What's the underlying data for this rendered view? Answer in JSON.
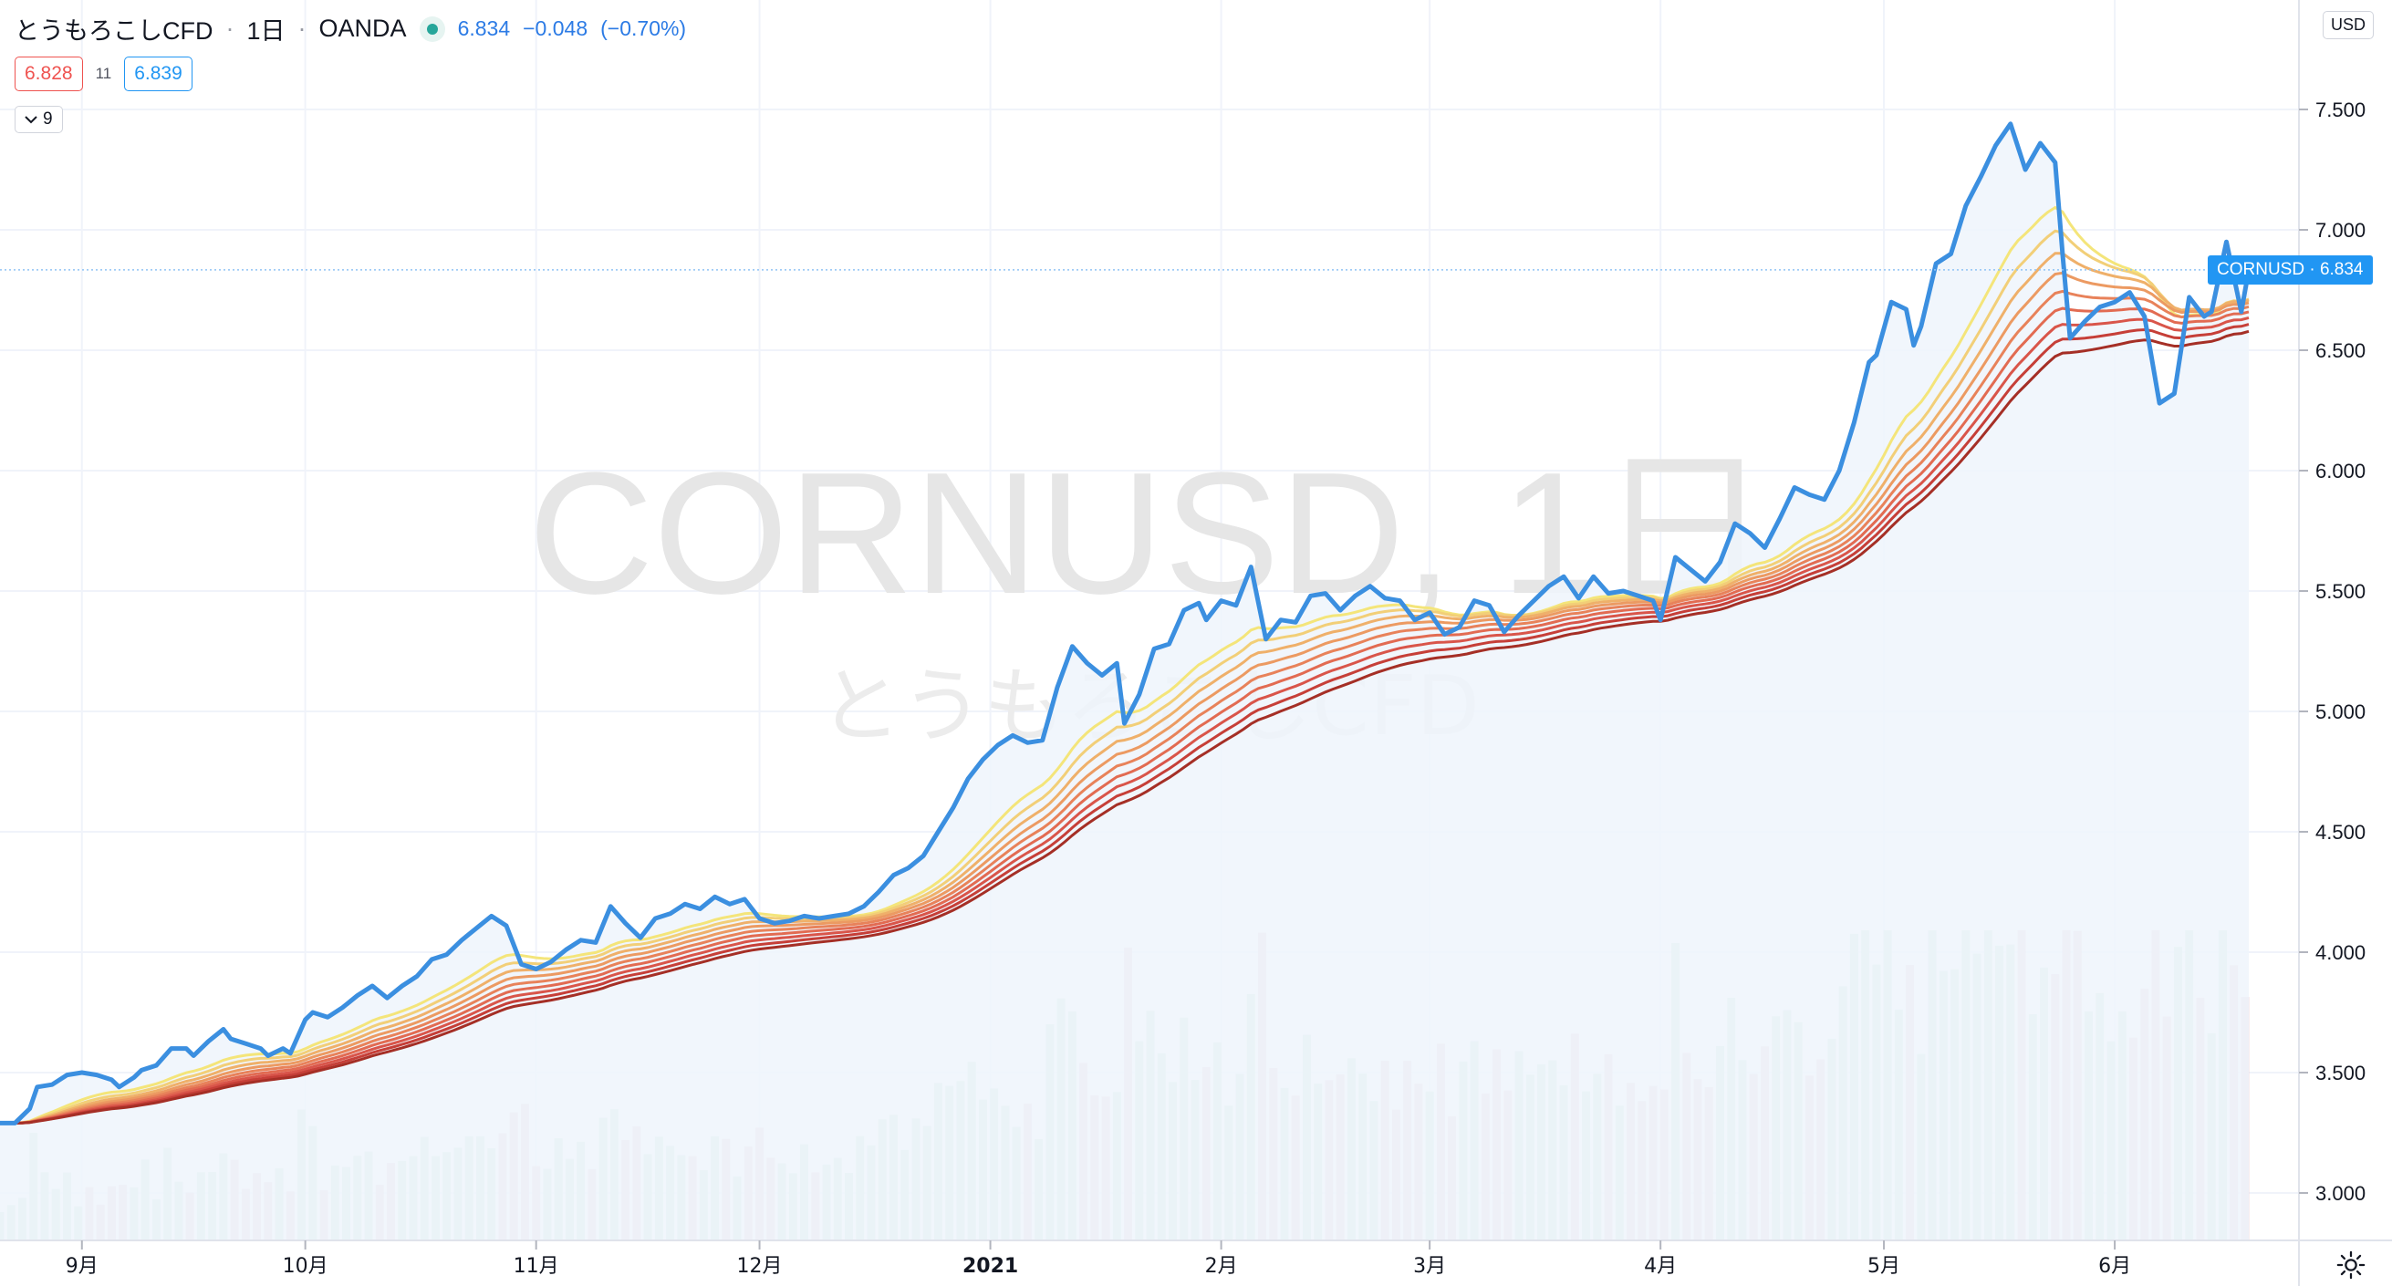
{
  "header": {
    "symbol": "とうもろこしCFD",
    "sep": "·",
    "interval": "1日",
    "exchange": "OANDA",
    "last": "6.834",
    "change": "−0.048",
    "change_pct": "(−0.70%)",
    "bid": "6.828",
    "spread": "11",
    "ask": "6.839",
    "indicators_count": "9",
    "currency": "USD"
  },
  "watermark": {
    "line1": "CORNUSD, 1日",
    "line2": "とうもろこしCFD"
  },
  "last_label": "CORNUSD · 6.834",
  "colors": {
    "price": "#3b8fe0",
    "ribbon": [
      "#f4e57a",
      "#f2cf78",
      "#efb06a",
      "#ec9a62",
      "#e8825a",
      "#e26b52",
      "#d9554a",
      "#c63f38",
      "#a52f26"
    ],
    "volume_up": "#cfe8d9",
    "volume_down": "#ecd7dc",
    "area_fill": "#eef5fc",
    "last_tag": "#2196f3"
  },
  "icons": {
    "settings": "gear-icon",
    "toggle": "chevron-down-icon"
  },
  "chart_data": {
    "type": "line",
    "title": "",
    "x_ticks": [
      "9月",
      "10月",
      "11月",
      "12月",
      "2021",
      "2月",
      "3月",
      "4月",
      "5月",
      "6月"
    ],
    "x_tick_days": [
      11,
      41,
      72,
      102,
      133,
      164,
      192,
      223,
      253,
      284
    ],
    "y_ticks": [
      "7.500",
      "7.000",
      "6.500",
      "6.000",
      "5.500",
      "5.000",
      "4.500",
      "4.000",
      "3.500",
      "3.000"
    ],
    "ylim": [
      2.9,
      7.75
    ],
    "x_range_days": [
      0,
      302
    ],
    "last_value": 6.834,
    "price_points": [
      [
        0,
        3.29
      ],
      [
        2,
        3.29
      ],
      [
        4,
        3.35
      ],
      [
        5,
        3.44
      ],
      [
        7,
        3.45
      ],
      [
        9,
        3.49
      ],
      [
        11,
        3.5
      ],
      [
        13,
        3.49
      ],
      [
        15,
        3.47
      ],
      [
        16,
        3.44
      ],
      [
        18,
        3.48
      ],
      [
        19,
        3.51
      ],
      [
        21,
        3.53
      ],
      [
        23,
        3.6
      ],
      [
        25,
        3.6
      ],
      [
        26,
        3.57
      ],
      [
        28,
        3.63
      ],
      [
        30,
        3.68
      ],
      [
        31,
        3.64
      ],
      [
        33,
        3.62
      ],
      [
        35,
        3.6
      ],
      [
        36,
        3.57
      ],
      [
        38,
        3.6
      ],
      [
        39,
        3.58
      ],
      [
        41,
        3.72
      ],
      [
        42,
        3.75
      ],
      [
        44,
        3.73
      ],
      [
        46,
        3.77
      ],
      [
        48,
        3.82
      ],
      [
        50,
        3.86
      ],
      [
        52,
        3.81
      ],
      [
        54,
        3.86
      ],
      [
        56,
        3.9
      ],
      [
        58,
        3.97
      ],
      [
        60,
        3.99
      ],
      [
        62,
        4.05
      ],
      [
        64,
        4.1
      ],
      [
        66,
        4.15
      ],
      [
        68,
        4.11
      ],
      [
        70,
        3.95
      ],
      [
        72,
        3.93
      ],
      [
        74,
        3.96
      ],
      [
        76,
        4.01
      ],
      [
        78,
        4.05
      ],
      [
        80,
        4.04
      ],
      [
        82,
        4.19
      ],
      [
        84,
        4.12
      ],
      [
        86,
        4.06
      ],
      [
        88,
        4.14
      ],
      [
        90,
        4.16
      ],
      [
        92,
        4.2
      ],
      [
        94,
        4.18
      ],
      [
        96,
        4.23
      ],
      [
        98,
        4.2
      ],
      [
        100,
        4.22
      ],
      [
        102,
        4.14
      ],
      [
        104,
        4.12
      ],
      [
        106,
        4.13
      ],
      [
        108,
        4.15
      ],
      [
        110,
        4.14
      ],
      [
        112,
        4.15
      ],
      [
        114,
        4.16
      ],
      [
        116,
        4.19
      ],
      [
        118,
        4.25
      ],
      [
        120,
        4.32
      ],
      [
        122,
        4.35
      ],
      [
        124,
        4.4
      ],
      [
        126,
        4.5
      ],
      [
        128,
        4.6
      ],
      [
        130,
        4.72
      ],
      [
        132,
        4.8
      ],
      [
        134,
        4.86
      ],
      [
        136,
        4.9
      ],
      [
        138,
        4.87
      ],
      [
        140,
        4.88
      ],
      [
        142,
        5.1
      ],
      [
        144,
        5.27
      ],
      [
        146,
        5.2
      ],
      [
        148,
        5.15
      ],
      [
        150,
        5.2
      ],
      [
        151,
        4.95
      ],
      [
        153,
        5.07
      ],
      [
        155,
        5.26
      ],
      [
        157,
        5.28
      ],
      [
        159,
        5.42
      ],
      [
        161,
        5.45
      ],
      [
        162,
        5.38
      ],
      [
        164,
        5.46
      ],
      [
        166,
        5.44
      ],
      [
        168,
        5.6
      ],
      [
        170,
        5.3
      ],
      [
        172,
        5.38
      ],
      [
        174,
        5.37
      ],
      [
        176,
        5.48
      ],
      [
        178,
        5.49
      ],
      [
        180,
        5.42
      ],
      [
        182,
        5.48
      ],
      [
        184,
        5.52
      ],
      [
        186,
        5.47
      ],
      [
        188,
        5.46
      ],
      [
        190,
        5.38
      ],
      [
        192,
        5.41
      ],
      [
        194,
        5.32
      ],
      [
        196,
        5.35
      ],
      [
        198,
        5.46
      ],
      [
        200,
        5.44
      ],
      [
        202,
        5.33
      ],
      [
        204,
        5.4
      ],
      [
        206,
        5.46
      ],
      [
        208,
        5.52
      ],
      [
        210,
        5.56
      ],
      [
        212,
        5.47
      ],
      [
        214,
        5.56
      ],
      [
        216,
        5.49
      ],
      [
        218,
        5.5
      ],
      [
        220,
        5.48
      ],
      [
        222,
        5.46
      ],
      [
        223,
        5.38
      ],
      [
        225,
        5.64
      ],
      [
        227,
        5.59
      ],
      [
        229,
        5.54
      ],
      [
        231,
        5.62
      ],
      [
        233,
        5.78
      ],
      [
        235,
        5.74
      ],
      [
        237,
        5.68
      ],
      [
        239,
        5.8
      ],
      [
        241,
        5.93
      ],
      [
        243,
        5.9
      ],
      [
        245,
        5.88
      ],
      [
        247,
        6.0
      ],
      [
        249,
        6.2
      ],
      [
        251,
        6.45
      ],
      [
        252,
        6.48
      ],
      [
        254,
        6.7
      ],
      [
        256,
        6.67
      ],
      [
        257,
        6.52
      ],
      [
        258,
        6.6
      ],
      [
        260,
        6.86
      ],
      [
        262,
        6.9
      ],
      [
        264,
        7.1
      ],
      [
        266,
        7.22
      ],
      [
        268,
        7.35
      ],
      [
        270,
        7.44
      ],
      [
        272,
        7.25
      ],
      [
        274,
        7.36
      ],
      [
        276,
        7.28
      ],
      [
        277,
        6.9
      ],
      [
        278,
        6.55
      ],
      [
        280,
        6.62
      ],
      [
        282,
        6.68
      ],
      [
        284,
        6.7
      ],
      [
        286,
        6.74
      ],
      [
        288,
        6.64
      ],
      [
        290,
        6.28
      ],
      [
        292,
        6.32
      ],
      [
        294,
        6.72
      ],
      [
        296,
        6.64
      ],
      [
        297,
        6.66
      ],
      [
        299,
        6.95
      ],
      [
        301,
        6.66
      ],
      [
        302,
        6.834
      ]
    ],
    "ribbon_offset_step": 0.045,
    "volume_axis_max": 1.0
  }
}
